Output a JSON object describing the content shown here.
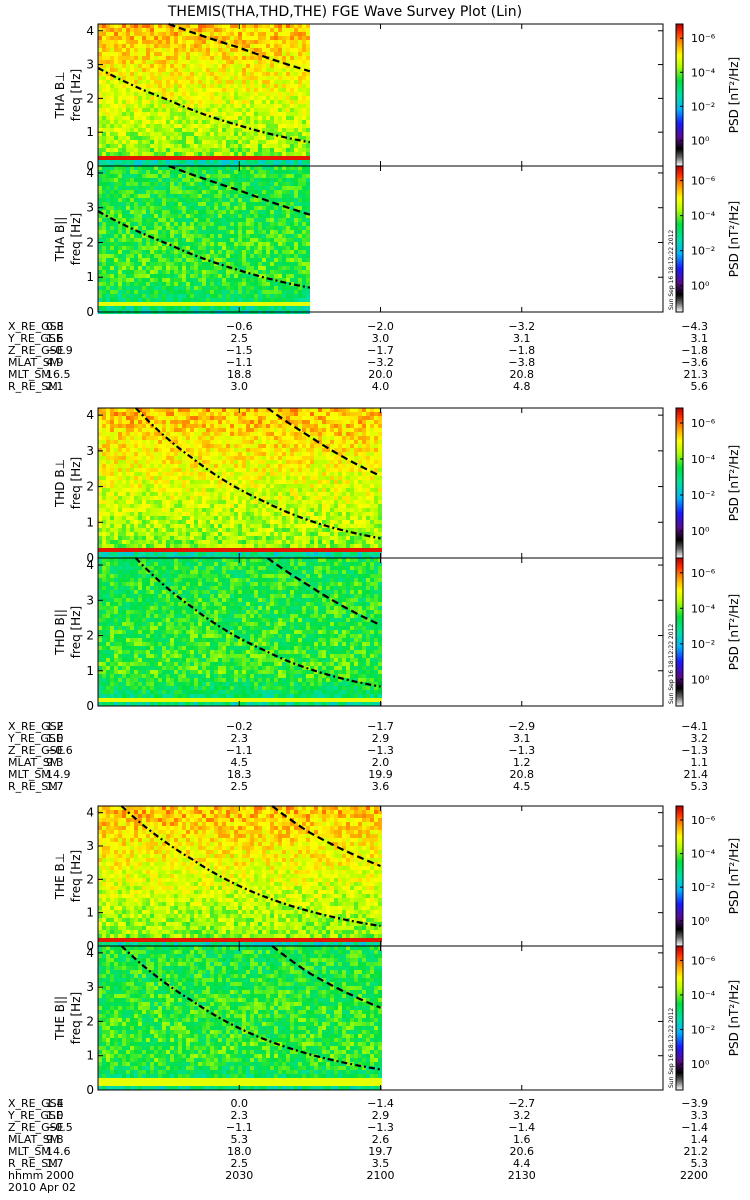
{
  "title": "THEMIS(THA,THD,THE) FGE Wave Survey Plot (Lin)",
  "date_label": "2010 Apr 02",
  "stamp": "Sun Sep 16 18:12:22 2012",
  "colorbar": {
    "label": "PSD [nT²/Hz]",
    "ticks": [
      "10⁰",
      "10⁻²",
      "10⁻⁴",
      "10⁻⁶"
    ]
  },
  "freq_ticks": [
    "0",
    "1",
    "2",
    "3",
    "4"
  ],
  "chart_data": [
    {
      "type": "heatmap",
      "probe": "THA",
      "title": "THEMIS(THA,THD,THE) FGE Wave Survey Plot (Lin)",
      "xlim_hhmm": [
        "2000",
        "2200"
      ],
      "data_coverage_hhmm": [
        "2000",
        "2045"
      ],
      "ylim": [
        0,
        4.2
      ],
      "zlim_log10": [
        -7,
        1.5
      ],
      "panels": [
        {
          "ylabel": "THA B⊥",
          "ylabel2": "freq [Hz]",
          "component": "perp",
          "low_freq_band_hz": 0.3,
          "band_strength": "strong"
        },
        {
          "ylabel": "THA B||",
          "ylabel2": "freq [Hz]",
          "component": "par",
          "low_freq_band_hz": 0.3,
          "band_strength": "weak"
        }
      ],
      "gyro_curves": {
        "dash_dot": {
          "x_min": [
            0,
            15,
            30,
            45
          ],
          "y_hz": [
            2.9,
            1.95,
            1.2,
            0.7
          ]
        },
        "dashed": {
          "x_min": [
            15,
            30,
            45
          ],
          "y_hz": [
            4.2,
            3.5,
            2.8
          ]
        }
      },
      "ephemeris": {
        "times_hhmm": [
          "2000",
          "2030",
          "2100",
          "2130",
          "2200"
        ],
        "rows": [
          {
            "label": "X_RE_GSE",
            "values": [
              "0.8",
              "-0.6",
              "-2.0",
              "-3.2",
              "-4.3"
            ]
          },
          {
            "label": "Y_RE_GSE",
            "values": [
              "1.6",
              "2.5",
              "3.0",
              "3.1",
              "3.1"
            ]
          },
          {
            "label": "Z_RE_GSE",
            "values": [
              "-0.9",
              "-1.5",
              "-1.7",
              "-1.8",
              "-1.8"
            ]
          },
          {
            "label": "MLAT_SM",
            "values": [
              "4.9",
              "-1.1",
              "-3.2",
              "-3.8",
              "-3.6"
            ]
          },
          {
            "label": "MLT_SM",
            "values": [
              "16.5",
              "18.8",
              "20.0",
              "20.8",
              "21.3"
            ]
          },
          {
            "label": "R_RE_SM",
            "values": [
              "2.1",
              "3.0",
              "4.0",
              "4.8",
              "5.6"
            ]
          }
        ]
      }
    },
    {
      "type": "heatmap",
      "probe": "THD",
      "xlim_hhmm": [
        "2000",
        "2200"
      ],
      "data_coverage_hhmm": [
        "2000",
        "2100"
      ],
      "ylim": [
        0,
        4.2
      ],
      "zlim_log10": [
        -7,
        1.5
      ],
      "panels": [
        {
          "ylabel": "THD B⊥",
          "ylabel2": "freq [Hz]",
          "component": "perp",
          "low_freq_band_hz": 0.25,
          "band_strength": "strong"
        },
        {
          "ylabel": "THD B||",
          "ylabel2": "freq [Hz]",
          "component": "par",
          "low_freq_band_hz": 0.25,
          "band_strength": "weak"
        }
      ],
      "gyro_curves": {
        "dash_dot": {
          "x_min": [
            8,
            20,
            35,
            60
          ],
          "y_hz": [
            4.2,
            2.8,
            1.6,
            0.55
          ]
        },
        "dashed": {
          "x_min": [
            36,
            45,
            60
          ],
          "y_hz": [
            4.2,
            3.4,
            2.3
          ]
        }
      },
      "ephemeris": {
        "times_hhmm": [
          "2000",
          "2030",
          "2100",
          "2130",
          "2200"
        ],
        "rows": [
          {
            "label": "X_RE_GSE",
            "values": [
              "1.2",
              "-0.2",
              "-1.7",
              "-2.9",
              "-4.1"
            ]
          },
          {
            "label": "Y_RE_GSE",
            "values": [
              "1.0",
              "2.3",
              "2.9",
              "3.1",
              "3.2"
            ]
          },
          {
            "label": "Z_RE_GSE",
            "values": [
              "-0.6",
              "-1.1",
              "-1.3",
              "-1.3",
              "-1.3"
            ]
          },
          {
            "label": "MLAT_SM",
            "values": [
              "9.3",
              "4.5",
              "2.0",
              "1.2",
              "1.1"
            ]
          },
          {
            "label": "MLT_SM",
            "values": [
              "14.9",
              "18.3",
              "19.9",
              "20.8",
              "21.4"
            ]
          },
          {
            "label": "R_RE_SM",
            "values": [
              "1.7",
              "2.5",
              "3.6",
              "4.5",
              "5.3"
            ]
          }
        ]
      }
    },
    {
      "type": "heatmap",
      "probe": "THE",
      "xlim_hhmm": [
        "2000",
        "2200"
      ],
      "data_coverage_hhmm": [
        "2000",
        "2100"
      ],
      "ylim": [
        0,
        4.2
      ],
      "zlim_log10": [
        -7,
        1.5
      ],
      "panels": [
        {
          "ylabel": "THE B⊥",
          "ylabel2": "freq [Hz]",
          "component": "perp",
          "low_freq_band_hz": 0.28,
          "band_strength": "strong"
        },
        {
          "ylabel": "THE B||",
          "ylabel2": "freq [Hz]",
          "component": "par",
          "low_freq_band_hz": 0.28,
          "band_strength": "weak"
        }
      ],
      "gyro_curves": {
        "dash_dot": {
          "x_min": [
            5,
            20,
            35,
            60
          ],
          "y_hz": [
            4.2,
            2.6,
            1.5,
            0.6
          ]
        },
        "dashed": {
          "x_min": [
            37,
            45,
            60
          ],
          "y_hz": [
            4.2,
            3.4,
            2.4
          ]
        }
      },
      "ephemeris": {
        "times_hhmm": [
          "2000",
          "2030",
          "2100",
          "2130",
          "2200"
        ],
        "rows": [
          {
            "label": "X_RE_GSE",
            "values": [
              "1.4",
              "0.0",
              "-1.4",
              "-2.7",
              "-3.9"
            ]
          },
          {
            "label": "Y_RE_GSE",
            "values": [
              "1.0",
              "2.3",
              "2.9",
              "3.2",
              "3.3"
            ]
          },
          {
            "label": "Z_RE_GSE",
            "values": [
              "-0.5",
              "-1.1",
              "-1.3",
              "-1.4",
              "-1.4"
            ]
          },
          {
            "label": "MLAT_SM",
            "values": [
              "9.8",
              "5.3",
              "2.6",
              "1.6",
              "1.4"
            ]
          },
          {
            "label": "MLT_SM",
            "values": [
              "14.6",
              "18.0",
              "19.7",
              "20.6",
              "21.2"
            ]
          },
          {
            "label": "R_RE_SM",
            "values": [
              "1.7",
              "2.5",
              "3.5",
              "4.4",
              "5.3"
            ]
          },
          {
            "label": "hhmm",
            "values": [
              "2000",
              "2030",
              "2100",
              "2130",
              "2200"
            ]
          }
        ]
      }
    }
  ]
}
